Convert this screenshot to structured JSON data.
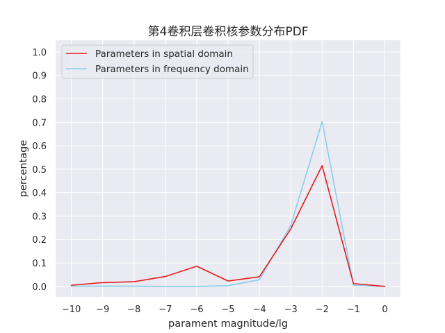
{
  "chart_data": {
    "type": "line",
    "title": "第4卷积层卷积核参数分布PDF",
    "xlabel": "parament magnitude/lg",
    "ylabel": "percentage",
    "x": [
      -10,
      -9,
      -8,
      -7,
      -6,
      -5,
      -4,
      -3,
      -2,
      -1,
      0
    ],
    "xticks": [
      "−10",
      "−9",
      "−8",
      "−7",
      "−6",
      "−5",
      "−4",
      "−3",
      "−2",
      "−1",
      "0"
    ],
    "yticks": [
      "0.0",
      "0.1",
      "0.2",
      "0.3",
      "0.4",
      "0.5",
      "0.6",
      "0.7",
      "0.8",
      "0.9",
      "1.0"
    ],
    "xlim": [
      -10.5,
      0.5
    ],
    "ylim": [
      -0.045,
      1.05
    ],
    "grid": true,
    "legend_position": "upper-left",
    "series": [
      {
        "name": "Parameters in spatial domain",
        "color": "#e41a1c",
        "values": [
          0.005,
          0.016,
          0.02,
          0.042,
          0.086,
          0.023,
          0.041,
          0.245,
          0.515,
          0.012,
          0.0
        ]
      },
      {
        "name": "Parameters in frequency domain",
        "color": "#87ceeb",
        "values": [
          0.001,
          0.001,
          0.001,
          0.0,
          0.0,
          0.003,
          0.028,
          0.26,
          0.703,
          0.005,
          0.0
        ]
      }
    ]
  }
}
